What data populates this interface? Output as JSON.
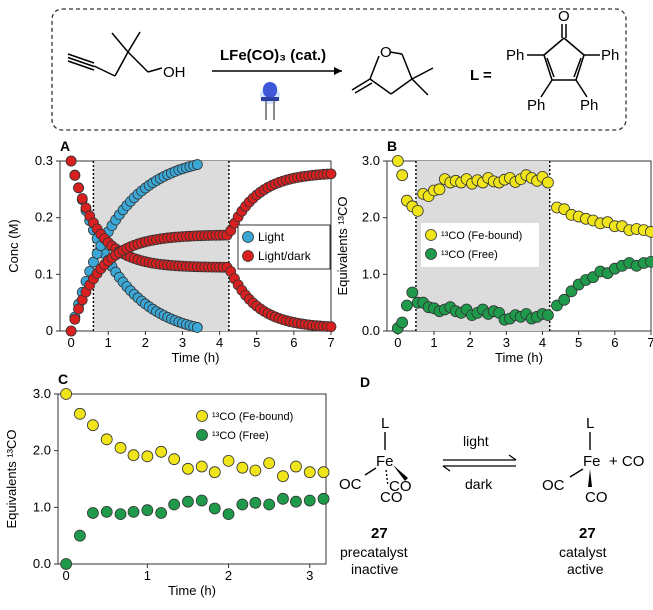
{
  "scheme": {
    "reagent": "LFe(CO)₃ (cat.)",
    "ligand_label": "L =",
    "substrate_oh": "OH",
    "product_o": "O",
    "ligand_o": "O",
    "ph_labels": [
      "Ph",
      "Ph",
      "Ph",
      "Ph"
    ],
    "led_icon": "blue-led-icon"
  },
  "panel_labels": [
    "A",
    "B",
    "C",
    "D"
  ],
  "colors": {
    "light": "#3aa7d6",
    "lightdark": "#d92020",
    "fe_bound": "#f0e41a",
    "free": "#1f9a4a",
    "dark_region": "#dcdcdc",
    "frame": "#333333"
  },
  "chart_data": [
    {
      "id": "A",
      "type": "scatter",
      "xlabel": "Time (h)",
      "ylabel": "Conc (M)",
      "xlim": [
        -0.3,
        7
      ],
      "ylim": [
        0,
        0.3
      ],
      "xticks": [
        0,
        1,
        2,
        3,
        4,
        5,
        6,
        7
      ],
      "yticks": [
        0,
        0.1,
        0.2,
        0.3
      ],
      "ytick_labels": [
        "0",
        "0.1",
        "0.2",
        "0.3"
      ],
      "shaded": [
        0.6,
        4.25
      ],
      "vlines": [
        0.6,
        4.25
      ],
      "legend": [
        "Light",
        "Light/dark"
      ],
      "series": [
        {
          "name": "Light",
          "color_key": "light",
          "kind": "decay",
          "x0": 0,
          "x1": 3.45,
          "step": 0.1,
          "y0": 0.3,
          "yinf": -0.013,
          "k": 0.82
        },
        {
          "name": "Light",
          "color_key": "light",
          "kind": "growth",
          "x0": 0,
          "x1": 3.45,
          "step": 0.1,
          "y0": 0.0,
          "yinf": 0.313,
          "k": 0.82
        },
        {
          "name": "Light/dark",
          "color_key": "lightdark",
          "kind": "piecewise-decay",
          "x0": 0,
          "x1": 7,
          "step": 0.1,
          "y0": 0.3,
          "ybreak": 0.112,
          "xbreak": 4.25,
          "yend": 0.005
        },
        {
          "name": "Light/dark",
          "color_key": "lightdark",
          "kind": "piecewise-growth",
          "x0": 0,
          "x1": 7,
          "step": 0.1,
          "y0": 0.0,
          "ybreak": 0.17,
          "xbreak": 4.25,
          "yend": 0.28
        }
      ]
    },
    {
      "id": "B",
      "type": "scatter",
      "xlabel": "Time (h)",
      "ylabel": "Equivalents ¹³CO",
      "xlim": [
        -0.3,
        7
      ],
      "ylim": [
        0,
        3
      ],
      "xticks": [
        0,
        1,
        2,
        3,
        4,
        5,
        6,
        7
      ],
      "yticks": [
        0,
        1,
        2,
        3
      ],
      "ytick_labels": [
        "0.0",
        "1.0",
        "2.0",
        "3.0"
      ],
      "shaded": [
        0.5,
        4.2
      ],
      "vlines": [
        0.5,
        4.2
      ],
      "legend": [
        "¹³CO (Fe-bound)",
        "¹³CO (Free)"
      ],
      "series": [
        {
          "name": "¹³CO (Fe-bound)",
          "color_key": "fe_bound",
          "x": [
            0,
            0.12,
            0.25,
            0.4,
            0.55,
            0.7,
            0.85,
            1.0,
            1.15,
            1.3,
            1.45,
            1.6,
            1.75,
            1.9,
            2.05,
            2.2,
            2.35,
            2.5,
            2.65,
            2.8,
            2.95,
            3.1,
            3.25,
            3.4,
            3.55,
            3.7,
            3.85,
            4.0,
            4.15,
            4.4,
            4.6,
            4.8,
            5.0,
            5.2,
            5.4,
            5.6,
            5.8,
            6.0,
            6.2,
            6.4,
            6.6,
            6.8,
            7.0
          ],
          "y": [
            3.0,
            2.75,
            2.3,
            2.2,
            2.12,
            2.42,
            2.38,
            2.48,
            2.5,
            2.68,
            2.62,
            2.65,
            2.62,
            2.68,
            2.6,
            2.66,
            2.62,
            2.7,
            2.64,
            2.62,
            2.67,
            2.7,
            2.63,
            2.68,
            2.75,
            2.7,
            2.65,
            2.72,
            2.62,
            2.18,
            2.15,
            2.05,
            2.02,
            1.98,
            1.95,
            1.9,
            1.92,
            1.85,
            1.85,
            1.78,
            1.8,
            1.78,
            1.75
          ]
        },
        {
          "name": "¹³CO (Free)",
          "color_key": "free",
          "x": [
            0,
            0.12,
            0.25,
            0.4,
            0.55,
            0.7,
            0.85,
            1.0,
            1.15,
            1.3,
            1.45,
            1.6,
            1.75,
            1.9,
            2.05,
            2.2,
            2.35,
            2.5,
            2.65,
            2.8,
            2.95,
            3.1,
            3.25,
            3.4,
            3.55,
            3.7,
            3.85,
            4.0,
            4.15,
            4.4,
            4.6,
            4.8,
            5.0,
            5.2,
            5.4,
            5.6,
            5.8,
            6.0,
            6.2,
            6.4,
            6.6,
            6.8,
            7.0
          ],
          "y": [
            0.05,
            0.15,
            0.45,
            0.68,
            0.5,
            0.5,
            0.42,
            0.4,
            0.35,
            0.38,
            0.42,
            0.35,
            0.32,
            0.38,
            0.28,
            0.32,
            0.38,
            0.3,
            0.35,
            0.32,
            0.2,
            0.22,
            0.28,
            0.25,
            0.3,
            0.22,
            0.25,
            0.3,
            0.28,
            0.45,
            0.55,
            0.7,
            0.82,
            0.9,
            0.95,
            1.05,
            1.02,
            1.1,
            1.15,
            1.2,
            1.15,
            1.2,
            1.22
          ]
        }
      ]
    },
    {
      "id": "C",
      "type": "scatter",
      "xlabel": "Time (h)",
      "ylabel": "Equivalents ¹³CO",
      "xlim": [
        -0.1,
        3.2
      ],
      "ylim": [
        0,
        3
      ],
      "xticks": [
        0,
        1,
        2,
        3
      ],
      "yticks": [
        0,
        1,
        2,
        3
      ],
      "ytick_labels": [
        "0.0",
        "1.0",
        "2.0",
        "3.0"
      ],
      "legend": [
        "¹³CO (Fe-bound)",
        "¹³CO (Free)"
      ],
      "series": [
        {
          "name": "¹³CO (Fe-bound)",
          "color_key": "fe_bound",
          "x": [
            0,
            0.17,
            0.33,
            0.5,
            0.67,
            0.83,
            1.0,
            1.17,
            1.33,
            1.5,
            1.67,
            1.83,
            2.0,
            2.17,
            2.33,
            2.5,
            2.67,
            2.83,
            3.0,
            3.17
          ],
          "y": [
            3.0,
            2.65,
            2.45,
            2.2,
            2.05,
            1.92,
            1.9,
            1.98,
            1.85,
            1.68,
            1.72,
            1.62,
            1.82,
            1.7,
            1.65,
            1.78,
            1.55,
            1.72,
            1.62,
            1.62
          ]
        },
        {
          "name": "¹³CO (Free)",
          "color_key": "free",
          "x": [
            0,
            0.17,
            0.33,
            0.5,
            0.67,
            0.83,
            1.0,
            1.17,
            1.33,
            1.5,
            1.67,
            1.83,
            2.0,
            2.17,
            2.33,
            2.5,
            2.67,
            2.83,
            3.0,
            3.17
          ],
          "y": [
            0.0,
            0.5,
            0.9,
            0.92,
            0.88,
            0.92,
            0.95,
            0.9,
            1.05,
            1.1,
            1.12,
            0.98,
            0.88,
            1.05,
            1.08,
            1.05,
            1.15,
            1.1,
            1.12,
            1.15
          ]
        }
      ]
    }
  ],
  "equilibrium": {
    "left": {
      "number": "27",
      "line1": "precatalyst",
      "line2": "inactive"
    },
    "right": {
      "number": "27",
      "line1": "catalyst",
      "line2": "active",
      "plus_co": "+ CO"
    },
    "arrow_top": "light",
    "arrow_bottom": "dark",
    "atoms": {
      "L": "L",
      "Fe": "Fe",
      "OC": "OC",
      "CO": "CO"
    }
  }
}
